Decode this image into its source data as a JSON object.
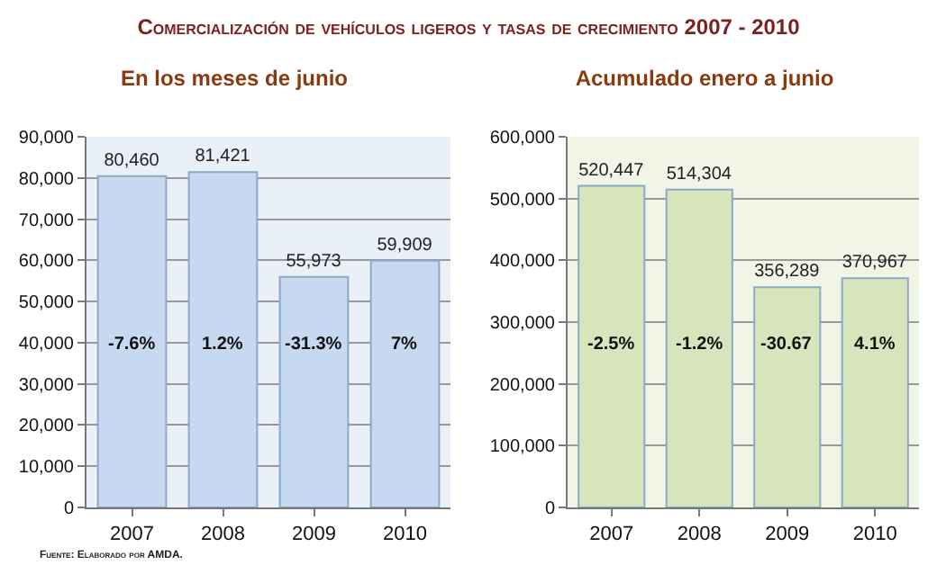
{
  "chart_data": [
    {
      "type": "bar",
      "title": "En los meses de junio",
      "categories": [
        "2007",
        "2008",
        "2009",
        "2010"
      ],
      "values": [
        80460,
        81421,
        55973,
        59909
      ],
      "color": "#c6d9f1",
      "ylim": [
        0,
        90000
      ],
      "yticks": [
        {
          "value": 0,
          "label": "0"
        },
        {
          "value": 10000,
          "label": "10,000"
        },
        {
          "value": 20000,
          "label": "20,000"
        },
        {
          "value": 30000,
          "label": "30,000"
        },
        {
          "value": 40000,
          "label": "40,000"
        },
        {
          "value": 50000,
          "label": "50,000"
        },
        {
          "value": 60000,
          "label": "60,000"
        },
        {
          "value": 70000,
          "label": "70,000"
        },
        {
          "value": 80000,
          "label": "80,000"
        },
        {
          "value": 90000,
          "label": "90,000"
        }
      ],
      "grid": "y",
      "value_labels": [
        "80,460",
        "81,421",
        "55,973",
        "59,909"
      ],
      "annotations": [
        "Comercialización de vehículos ligeros y tasas de crecimiento 2007 - 2010",
        "Fuente: Elaborado por AMDA.",
        "-7.6%",
        "1.2%",
        "-31.3%",
        "7%"
      ]
    },
    {
      "type": "bar",
      "title": "Acumulado enero a junio",
      "categories": [
        "2007",
        "2008",
        "2009",
        "2010"
      ],
      "values": [
        520447,
        514304,
        356289,
        370967
      ],
      "color": "#d8e4bc",
      "ylim": [
        0,
        600000
      ],
      "yticks": [
        {
          "value": 0,
          "label": "0"
        },
        {
          "value": 100000,
          "label": "100,000"
        },
        {
          "value": 200000,
          "label": "200,000"
        },
        {
          "value": 300000,
          "label": "300,000"
        },
        {
          "value": 400000,
          "label": "400,000"
        },
        {
          "value": 500000,
          "label": "500,000"
        },
        {
          "value": 600000,
          "label": "600,000"
        }
      ],
      "grid": "y",
      "value_labels": [
        "520,447",
        "514,304",
        "356,289",
        "370,967"
      ],
      "annotations": [
        "-2.5%",
        "-1.2%",
        "-30.67",
        "4.1%"
      ]
    }
  ]
}
